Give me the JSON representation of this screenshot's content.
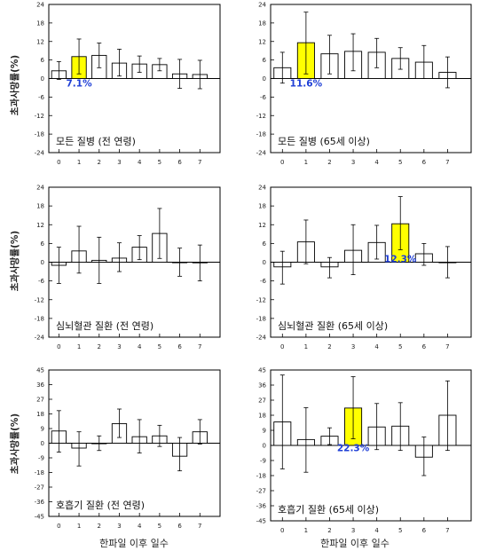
{
  "y_axis_label": "초과사망률(%)",
  "x_axis_label": "한파일 이후 일수",
  "colors": {
    "highlight": "#ffff00",
    "normal": "#ffffff",
    "label": "#1f3fd6"
  },
  "chart_data": [
    {
      "type": "bar",
      "title": "모든 질병 (전 연령)",
      "categories": [
        "0",
        "1",
        "2",
        "3",
        "4",
        "5",
        "6",
        "7"
      ],
      "values": [
        2.5,
        7.1,
        7.5,
        5.0,
        4.7,
        4.5,
        1.5,
        1.3
      ],
      "error_upper": [
        5.5,
        12.8,
        11.5,
        9.5,
        7.3,
        6.5,
        6.2,
        5.9
      ],
      "error_lower": [
        -0.3,
        1.5,
        3.5,
        0.8,
        2.0,
        2.5,
        -3.2,
        -3.3
      ],
      "yticks": [
        -24,
        -18,
        -12,
        -6,
        0,
        6,
        12,
        18,
        24
      ],
      "ylim": [
        -24,
        24
      ],
      "highlight_index": 1,
      "value_label": "7.1%"
    },
    {
      "type": "bar",
      "title": "모든 질병 (65세 이상)",
      "categories": [
        "0",
        "1",
        "2",
        "3",
        "4",
        "5",
        "6",
        "7"
      ],
      "values": [
        3.5,
        11.6,
        8.0,
        8.8,
        8.5,
        6.5,
        5.3,
        2.0
      ],
      "error_upper": [
        8.5,
        21.5,
        14.0,
        14.5,
        13.0,
        10.0,
        10.7,
        7.0
      ],
      "error_lower": [
        -1.5,
        1.5,
        1.5,
        2.5,
        3.5,
        3.0,
        0.0,
        -3.0
      ],
      "yticks": [
        -24,
        -18,
        -12,
        -6,
        0,
        6,
        12,
        18,
        24
      ],
      "ylim": [
        -24,
        24
      ],
      "highlight_index": 1,
      "value_label": "11.6%"
    },
    {
      "type": "bar",
      "title": "심뇌혈관 질환 (전 연령)",
      "categories": [
        "0",
        "1",
        "2",
        "3",
        "4",
        "5",
        "6",
        "7"
      ],
      "values": [
        -1.0,
        3.6,
        0.6,
        1.3,
        4.8,
        9.2,
        0.0,
        -0.2
      ],
      "error_upper": [
        4.8,
        11.5,
        8.0,
        6.2,
        8.5,
        17.2,
        4.5,
        5.5
      ],
      "error_lower": [
        -6.8,
        -3.5,
        -6.8,
        -3.0,
        0.8,
        1.2,
        -4.5,
        -6.0
      ],
      "yticks": [
        -24,
        -18,
        -12,
        -6,
        0,
        6,
        12,
        18,
        24
      ],
      "ylim": [
        -24,
        24
      ],
      "highlight_index": null,
      "value_label": ""
    },
    {
      "type": "bar",
      "title": "심뇌혈관 질환 (65세 이상)",
      "categories": [
        "0",
        "1",
        "2",
        "3",
        "4",
        "5",
        "6",
        "7"
      ],
      "values": [
        -1.5,
        6.5,
        -1.5,
        3.8,
        6.3,
        12.3,
        2.7,
        0.0
      ],
      "error_upper": [
        3.5,
        13.5,
        1.5,
        12.0,
        11.8,
        21.0,
        6.0,
        5.0
      ],
      "error_lower": [
        -7.0,
        -0.5,
        -5.0,
        -4.0,
        1.0,
        4.0,
        -1.0,
        -5.0
      ],
      "yticks": [
        -24,
        -18,
        -12,
        -6,
        0,
        6,
        12,
        18,
        24
      ],
      "ylim": [
        -24,
        24
      ],
      "highlight_index": 5,
      "value_label": "12.3%"
    },
    {
      "type": "bar",
      "title": "호흡기 질환 (전 연령)",
      "categories": [
        "0",
        "1",
        "2",
        "3",
        "4",
        "5",
        "6",
        "7"
      ],
      "values": [
        7.5,
        -3.0,
        0.0,
        12.0,
        4.0,
        4.5,
        -8.0,
        7.0
      ],
      "error_upper": [
        20.0,
        7.0,
        4.5,
        21.0,
        14.5,
        11.0,
        3.5,
        14.5
      ],
      "error_lower": [
        -5.5,
        -14.0,
        -4.5,
        3.5,
        -6.0,
        -2.0,
        -17.0,
        -0.5
      ],
      "yticks": [
        -45,
        -36,
        -27,
        -18,
        -9,
        0,
        9,
        18,
        27,
        36,
        45
      ],
      "ylim": [
        -45,
        45
      ],
      "highlight_index": null,
      "value_label": ""
    },
    {
      "type": "bar",
      "title": "호흡기 질환 (65세 이상)",
      "categories": [
        "0",
        "1",
        "2",
        "3",
        "4",
        "5",
        "6",
        "7"
      ],
      "values": [
        14.0,
        3.5,
        5.5,
        22.3,
        11.0,
        11.5,
        -7.0,
        18.0
      ],
      "error_upper": [
        42.0,
        22.5,
        10.5,
        41.0,
        25.0,
        25.5,
        5.0,
        38.5
      ],
      "error_lower": [
        -14.0,
        -16.0,
        0.5,
        4.0,
        -2.5,
        -3.0,
        -18.0,
        -3.0
      ],
      "yticks": [
        -45,
        -36,
        -27,
        -18,
        -9,
        0,
        9,
        18,
        27,
        36,
        45
      ],
      "ylim": [
        -45,
        45
      ],
      "highlight_index": 3,
      "value_label": "22.3%"
    }
  ]
}
